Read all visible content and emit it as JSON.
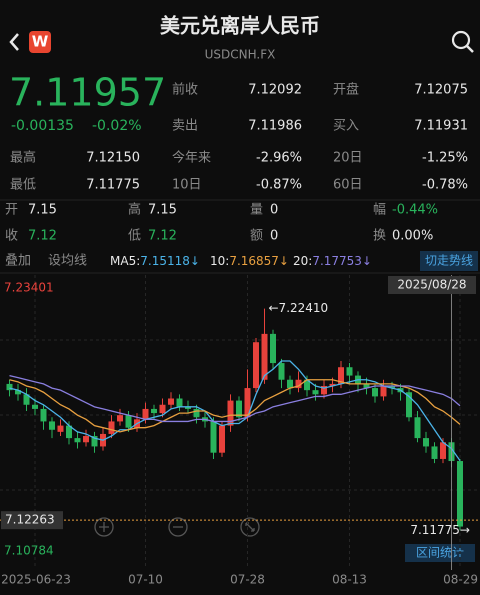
{
  "header": {
    "title": "美元兑离岸人民币",
    "subtitle": "USDCNH.FX",
    "logo": "W"
  },
  "quote": {
    "price": "7.11957",
    "change": "-0.00135",
    "change_pct": "-0.02%"
  },
  "stats": [
    {
      "label": "前收",
      "value": "7.12092"
    },
    {
      "label": "开盘",
      "value": "7.12075"
    },
    {
      "label": "卖出",
      "value": "7.11986"
    },
    {
      "label": "买入",
      "value": "7.11931"
    },
    {
      "label": "最高",
      "value": "7.12150"
    },
    {
      "label": "今年来",
      "value": "-2.96%"
    },
    {
      "label": "20日",
      "value": "-1.25%"
    },
    {
      "label": "最低",
      "value": "7.11775"
    },
    {
      "label": "10日",
      "value": "-0.87%"
    },
    {
      "label": "60日",
      "value": "-0.78%"
    }
  ],
  "detail": [
    {
      "label": "开",
      "value": "7.15",
      "color": "#e8e8e8"
    },
    {
      "label": "高",
      "value": "7.15",
      "color": "#e8e8e8"
    },
    {
      "label": "量",
      "value": "0",
      "color": "#e8e8e8"
    },
    {
      "label": "幅",
      "value": "-0.44%",
      "color": "#29b35c"
    },
    {
      "label": "收",
      "value": "7.12",
      "color": "#29b35c"
    },
    {
      "label": "低",
      "value": "7.12",
      "color": "#29b35c"
    },
    {
      "label": "额",
      "value": "0",
      "color": "#e8e8e8"
    },
    {
      "label": "换",
      "value": "0.00%",
      "color": "#e8e8e8"
    }
  ],
  "toolbar": {
    "overlay": "叠加",
    "ma_setting": "设均线",
    "ma": [
      {
        "label": "MA5:",
        "value": "7.15118↓"
      },
      {
        "label": "10:",
        "value": "7.16857↓"
      },
      {
        "label": "20:",
        "value": "7.17753↓"
      }
    ],
    "switch": "切走势线"
  },
  "range_stats": "区间统计",
  "chart_data": {
    "type": "candlestick",
    "up_color": "#e8423c",
    "down_color": "#29b35c",
    "ylim": [
      7.10784,
      7.23401
    ],
    "crosshair_date": "2025/08/28",
    "crosshair_value": 7.12263,
    "high_label": {
      "value": 7.2241,
      "label": "←7.22410"
    },
    "low_label": {
      "value": 7.11775,
      "label": "7.11775→"
    },
    "categories": [
      null,
      null,
      null,
      "2025-06-23",
      null,
      null,
      null,
      null,
      null,
      null,
      null,
      null,
      null,
      null,
      null,
      null,
      "07-10",
      null,
      null,
      null,
      null,
      null,
      null,
      null,
      null,
      null,
      null,
      null,
      "07-28",
      null,
      null,
      null,
      null,
      null,
      null,
      null,
      null,
      null,
      null,
      null,
      "08-13",
      null,
      null,
      null,
      null,
      null,
      null,
      null,
      null,
      null,
      null,
      null,
      null,
      "08-29"
    ],
    "candles": [
      [
        7.188,
        7.19,
        7.182,
        7.185
      ],
      [
        7.185,
        7.188,
        7.18,
        7.183
      ],
      [
        7.183,
        7.186,
        7.175,
        7.178
      ],
      [
        7.178,
        7.181,
        7.173,
        7.176
      ],
      [
        7.176,
        7.178,
        7.166,
        7.17
      ],
      [
        7.17,
        7.172,
        7.162,
        7.166
      ],
      [
        7.165,
        7.171,
        7.163,
        7.168
      ],
      [
        7.168,
        7.17,
        7.159,
        7.162
      ],
      [
        7.162,
        7.165,
        7.157,
        7.16
      ],
      [
        7.16,
        7.166,
        7.158,
        7.163
      ],
      [
        7.163,
        7.165,
        7.155,
        7.158
      ],
      [
        7.158,
        7.167,
        7.156,
        7.164
      ],
      [
        7.164,
        7.173,
        7.162,
        7.17
      ],
      [
        7.17,
        7.176,
        7.168,
        7.173
      ],
      [
        7.173,
        7.175,
        7.165,
        7.167
      ],
      [
        7.167,
        7.174,
        7.165,
        7.171
      ],
      [
        7.171,
        7.179,
        7.169,
        7.176
      ],
      [
        7.176,
        7.178,
        7.171,
        7.174
      ],
      [
        7.174,
        7.181,
        7.172,
        7.178
      ],
      [
        7.178,
        7.184,
        7.176,
        7.181
      ],
      [
        7.181,
        7.183,
        7.175,
        7.177
      ],
      [
        7.177,
        7.18,
        7.174,
        7.176
      ],
      [
        7.176,
        7.178,
        7.169,
        7.172
      ],
      [
        7.172,
        7.175,
        7.167,
        7.17
      ],
      [
        7.17,
        7.172,
        7.152,
        7.155
      ],
      [
        7.155,
        7.17,
        7.153,
        7.168
      ],
      [
        7.168,
        7.183,
        7.165,
        7.18
      ],
      [
        7.18,
        7.182,
        7.17,
        7.172
      ],
      [
        7.172,
        7.195,
        7.17,
        7.186
      ],
      [
        7.186,
        7.21,
        7.184,
        7.208
      ],
      [
        7.19,
        7.2241,
        7.188,
        7.212
      ],
      [
        7.212,
        7.214,
        7.195,
        7.198
      ],
      [
        7.198,
        7.2,
        7.186,
        7.19
      ],
      [
        7.19,
        7.192,
        7.183,
        7.186
      ],
      [
        7.186,
        7.194,
        7.184,
        7.19
      ],
      [
        7.19,
        7.192,
        7.182,
        7.185
      ],
      [
        7.185,
        7.188,
        7.18,
        7.183
      ],
      [
        7.183,
        7.19,
        7.181,
        7.187
      ],
      [
        7.187,
        7.191,
        7.184,
        7.188
      ],
      [
        7.188,
        7.199,
        7.186,
        7.196
      ],
      [
        7.196,
        7.198,
        7.188,
        7.192
      ],
      [
        7.192,
        7.194,
        7.184,
        7.188
      ],
      [
        7.188,
        7.191,
        7.183,
        7.186
      ],
      [
        7.186,
        7.188,
        7.179,
        7.182
      ],
      [
        7.182,
        7.19,
        7.18,
        7.187
      ],
      [
        7.187,
        7.189,
        7.183,
        7.186
      ],
      [
        7.186,
        7.188,
        7.18,
        7.184
      ],
      [
        7.184,
        7.186,
        7.17,
        7.172
      ],
      [
        7.172,
        7.175,
        7.16,
        7.162
      ],
      [
        7.162,
        7.165,
        7.155,
        7.158
      ],
      [
        7.158,
        7.16,
        7.15,
        7.152
      ],
      [
        7.152,
        7.162,
        7.15,
        7.16
      ],
      [
        7.16,
        7.162,
        7.148,
        7.151
      ],
      [
        7.151,
        7.152,
        7.11775,
        7.11957
      ]
    ],
    "series": [
      {
        "color": "#4bb3e8",
        "values": [
          7.186,
          7.185,
          7.183,
          7.18,
          7.178,
          7.175,
          7.172,
          7.168,
          7.165,
          7.164,
          7.162,
          7.161,
          7.163,
          7.166,
          7.166,
          7.169,
          7.171,
          7.172,
          7.173,
          7.176,
          7.177,
          7.177,
          7.177,
          7.175,
          7.17,
          7.168,
          7.169,
          7.169,
          7.172,
          7.183,
          7.192,
          7.195,
          7.199,
          7.199,
          7.195,
          7.19,
          7.187,
          7.186,
          7.187,
          7.188,
          7.189,
          7.19,
          7.19,
          7.189,
          7.187,
          7.186,
          7.185,
          7.182,
          7.178,
          7.172,
          7.166,
          7.16,
          7.157,
          7.15118
        ]
      },
      {
        "color": "#e8a040",
        "values": [
          7.19,
          7.189,
          7.187,
          7.186,
          7.184,
          7.181,
          7.178,
          7.176,
          7.173,
          7.171,
          7.168,
          7.167,
          7.166,
          7.165,
          7.166,
          7.167,
          7.167,
          7.168,
          7.17,
          7.172,
          7.174,
          7.174,
          7.175,
          7.175,
          7.173,
          7.172,
          7.173,
          7.173,
          7.173,
          7.176,
          7.18,
          7.182,
          7.184,
          7.186,
          7.187,
          7.19,
          7.19,
          7.19,
          7.19,
          7.189,
          7.188,
          7.188,
          7.188,
          7.188,
          7.188,
          7.188,
          7.187,
          7.186,
          7.184,
          7.181,
          7.177,
          7.175,
          7.172,
          7.16857
        ]
      },
      {
        "color": "#8a7fe0",
        "values": [
          7.192,
          7.191,
          7.19,
          7.189,
          7.188,
          7.186,
          7.185,
          7.183,
          7.181,
          7.179,
          7.177,
          7.176,
          7.175,
          7.174,
          7.173,
          7.172,
          7.171,
          7.171,
          7.17,
          7.17,
          7.17,
          7.17,
          7.171,
          7.171,
          7.17,
          7.17,
          7.17,
          7.171,
          7.172,
          7.174,
          7.175,
          7.177,
          7.178,
          7.179,
          7.18,
          7.181,
          7.182,
          7.182,
          7.183,
          7.183,
          7.184,
          7.185,
          7.186,
          7.187,
          7.187,
          7.187,
          7.187,
          7.187,
          7.186,
          7.185,
          7.184,
          7.183,
          7.181,
          7.17753
        ]
      }
    ]
  }
}
